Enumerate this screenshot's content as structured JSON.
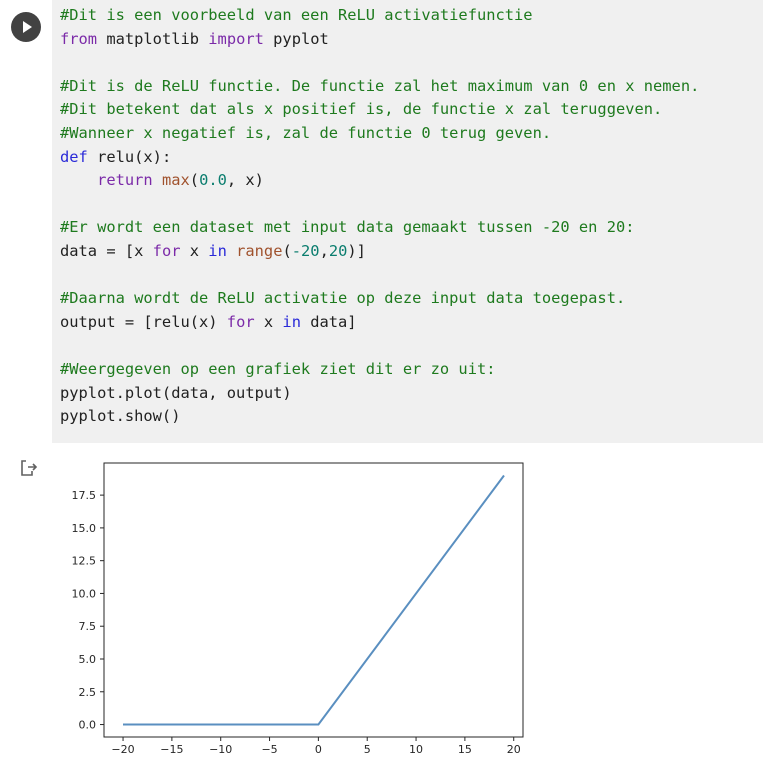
{
  "cell": {
    "run_button": "run",
    "code_lines": [
      [
        {
          "t": "#Dit is een voorbeeld van een ReLU activatiefunctie",
          "c": "cm"
        }
      ],
      [
        {
          "t": "from",
          "c": "kw"
        },
        {
          "t": " matplotlib ",
          "c": ""
        },
        {
          "t": "import",
          "c": "kw"
        },
        {
          "t": " pyplot",
          "c": ""
        }
      ],
      [
        {
          "t": "",
          "c": ""
        }
      ],
      [
        {
          "t": "#Dit is de ReLU functie. De functie zal het maximum van 0 en x nemen.",
          "c": "cm"
        }
      ],
      [
        {
          "t": "#Dit betekent dat als x positief is, de functie x zal teruggeven.",
          "c": "cm"
        }
      ],
      [
        {
          "t": "#Wanneer x negatief is, zal de functie 0 terug geven.",
          "c": "cm"
        }
      ],
      [
        {
          "t": "def",
          "c": "kw2"
        },
        {
          "t": " relu(x):",
          "c": ""
        }
      ],
      [
        {
          "t": "    ",
          "c": ""
        },
        {
          "t": "return",
          "c": "kw"
        },
        {
          "t": " ",
          "c": ""
        },
        {
          "t": "max",
          "c": "bi"
        },
        {
          "t": "(",
          "c": ""
        },
        {
          "t": "0.0",
          "c": "num"
        },
        {
          "t": ", x)",
          "c": ""
        }
      ],
      [
        {
          "t": "",
          "c": ""
        }
      ],
      [
        {
          "t": "#Er wordt een dataset met input data gemaakt tussen -20 en 20:",
          "c": "cm"
        }
      ],
      [
        {
          "t": "data = [x ",
          "c": ""
        },
        {
          "t": "for",
          "c": "kw"
        },
        {
          "t": " x ",
          "c": ""
        },
        {
          "t": "in",
          "c": "kw2"
        },
        {
          "t": " ",
          "c": ""
        },
        {
          "t": "range",
          "c": "bi"
        },
        {
          "t": "(",
          "c": ""
        },
        {
          "t": "-20",
          "c": "num"
        },
        {
          "t": ",",
          "c": ""
        },
        {
          "t": "20",
          "c": "num"
        },
        {
          "t": ")]",
          "c": ""
        }
      ],
      [
        {
          "t": "",
          "c": ""
        }
      ],
      [
        {
          "t": "#Daarna wordt de ReLU activatie op deze input data toegepast.",
          "c": "cm"
        }
      ],
      [
        {
          "t": "output = [relu(x) ",
          "c": ""
        },
        {
          "t": "for",
          "c": "kw"
        },
        {
          "t": " x ",
          "c": ""
        },
        {
          "t": "in",
          "c": "kw2"
        },
        {
          "t": " data]",
          "c": ""
        }
      ],
      [
        {
          "t": "",
          "c": ""
        }
      ],
      [
        {
          "t": "#Weergegeven op een grafiek ziet dit er zo uit:",
          "c": "cm"
        }
      ],
      [
        {
          "t": "pyplot.plot(data, output)",
          "c": ""
        }
      ],
      [
        {
          "t": "pyplot.show()",
          "c": ""
        }
      ]
    ]
  },
  "output": {
    "icon": "output-redirect-icon"
  },
  "chart_data": {
    "type": "line",
    "title": "",
    "xlabel": "",
    "ylabel": "",
    "xlim": [
      -21.95,
      20.95
    ],
    "ylim": [
      -0.95,
      19.95
    ],
    "x_ticks": [
      -20,
      -15,
      -10,
      -5,
      0,
      5,
      10,
      15,
      20
    ],
    "x_tick_labels": [
      "−20",
      "−15",
      "−10",
      "−5",
      "0",
      "5",
      "10",
      "15",
      "20"
    ],
    "y_ticks": [
      0.0,
      2.5,
      5.0,
      7.5,
      10.0,
      12.5,
      15.0,
      17.5
    ],
    "y_tick_labels": [
      "0.0",
      "2.5",
      "5.0",
      "7.5",
      "10.0",
      "12.5",
      "15.0",
      "17.5"
    ],
    "grid": false,
    "series": [
      {
        "color": "#5a8fc0",
        "x": [
          -20,
          0,
          19
        ],
        "y": [
          0,
          0,
          19
        ]
      }
    ]
  }
}
